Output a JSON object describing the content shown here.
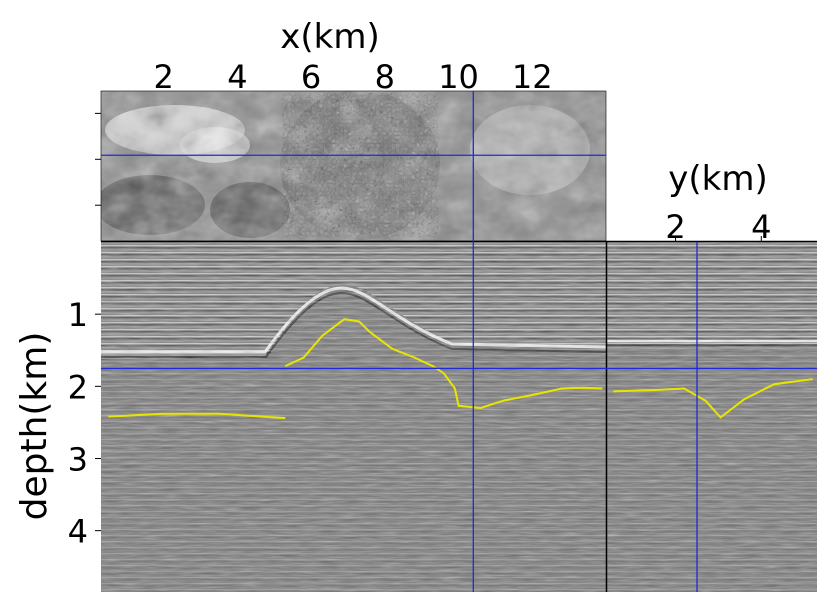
{
  "chart_data": {
    "type": "image-cube",
    "top_panel": {
      "xlabel": "x(km)",
      "xticks": [
        "2",
        "4",
        "6",
        "8",
        "10",
        "12"
      ],
      "xtick_values": [
        2,
        4,
        6,
        8,
        10,
        12
      ],
      "xlim": [
        0.3,
        14.0
      ]
    },
    "side_panel": {
      "xlabel": "y(km)",
      "xticks": [
        "2",
        "4"
      ],
      "xtick_values": [
        2,
        4
      ],
      "ylim_km": [
        0.4,
        5.3
      ]
    },
    "main_panel": {
      "ylabel": "depth(km)",
      "yticks": [
        "1",
        "2",
        "3",
        "4"
      ],
      "ytick_values": [
        1,
        2,
        3,
        4
      ],
      "depth_range": [
        0,
        4.85
      ]
    },
    "crosshair": {
      "x_km": 10.4,
      "y_km": 2.5,
      "depth_km": 1.75,
      "color": "#1f2bd6"
    },
    "horizon_color": "#e8e600",
    "horizons_xz": [
      {
        "x": [
          0.5,
          2,
          3.5,
          5.3
        ],
        "z": [
          2.42,
          2.38,
          2.38,
          2.44
        ]
      },
      {
        "x": [
          5.3,
          5.8,
          6.3,
          6.9,
          7.3,
          7.6,
          8.2,
          8.8,
          9.3,
          9.6,
          9.9,
          10.0,
          10.6,
          11.2,
          12.0,
          12.8,
          13.4,
          13.9
        ],
        "z": [
          1.72,
          1.6,
          1.3,
          1.07,
          1.1,
          1.25,
          1.48,
          1.6,
          1.72,
          1.82,
          2.03,
          2.27,
          2.3,
          2.2,
          2.12,
          2.03,
          2.02,
          2.03
        ]
      }
    ],
    "horizons_yz": [
      {
        "y": [
          0.55,
          1.6,
          2.2,
          2.7,
          3.05,
          3.6,
          4.3,
          5.2
        ],
        "z": [
          2.07,
          2.05,
          2.03,
          2.2,
          2.43,
          2.18,
          1.97,
          1.9
        ]
      }
    ]
  }
}
